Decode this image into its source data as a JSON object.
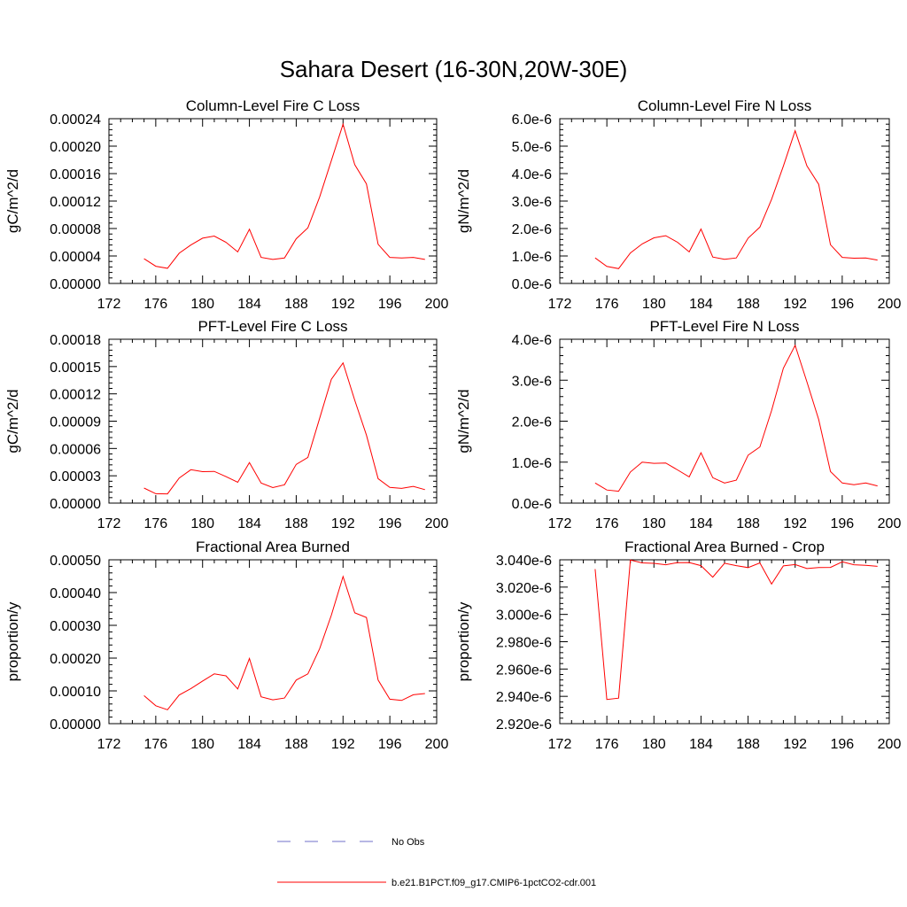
{
  "title": "Sahara Desert (16-30N,20W-30E)",
  "legend": {
    "placement": "bottom",
    "entries": [
      {
        "label": "No Obs",
        "color": "#6f6fc8",
        "style": "dashed"
      },
      {
        "label": "b.e21.B1PCT.f09_g17.CMIP6-1pctCO2-cdr.001",
        "color": "#ff0000",
        "style": "solid"
      }
    ]
  },
  "chart_data": [
    {
      "type": "line",
      "title": "Column-Level Fire C Loss",
      "ylabel": "gC/m^2/d",
      "xlim": [
        172,
        200
      ],
      "ylim": [
        0,
        0.00024
      ],
      "xticks": [
        172,
        176,
        180,
        184,
        188,
        192,
        196,
        200
      ],
      "xtick_labels": [
        "172",
        "176",
        "180",
        "184",
        "188",
        "192",
        "196",
        "200"
      ],
      "yticks": [
        0,
        4e-05,
        8e-05,
        0.00012,
        0.00016,
        0.0002,
        0.00024
      ],
      "ytick_labels": [
        "0.00000",
        "0.00004",
        "0.00008",
        "0.00012",
        "0.00016",
        "0.00020",
        "0.00024"
      ],
      "x": [
        175,
        176,
        177,
        178,
        179,
        180,
        181,
        182,
        183,
        184,
        185,
        186,
        187,
        188,
        189,
        190,
        191,
        192,
        193,
        194,
        195,
        196,
        197,
        198,
        199
      ],
      "series": [
        {
          "name": "b.e21.B1PCT.f09_g17.CMIP6-1pctCO2-cdr.001",
          "color": "#ff0000",
          "values": [
            3.6e-05,
            2.5e-05,
            2.2e-05,
            4.4e-05,
            5.6e-05,
            6.6e-05,
            6.9e-05,
            6e-05,
            4.6e-05,
            7.9e-05,
            3.8e-05,
            3.5e-05,
            3.7e-05,
            6.5e-05,
            8.1e-05,
            0.000126,
            0.000179,
            0.000232,
            0.000173,
            0.000145,
            5.7e-05,
            3.8e-05,
            3.7e-05,
            3.8e-05,
            3.5e-05
          ]
        }
      ]
    },
    {
      "type": "line",
      "title": "Column-Level Fire N Loss",
      "ylabel": "gN/m^2/d",
      "xlim": [
        172,
        200
      ],
      "ylim": [
        0,
        6e-06
      ],
      "xticks": [
        172,
        176,
        180,
        184,
        188,
        192,
        196,
        200
      ],
      "xtick_labels": [
        "172",
        "176",
        "180",
        "184",
        "188",
        "192",
        "196",
        "200"
      ],
      "yticks": [
        0,
        1e-06,
        2e-06,
        3e-06,
        4e-06,
        5e-06,
        6e-06
      ],
      "ytick_labels": [
        "0.0e-6",
        "1.0e-6",
        "2.0e-6",
        "3.0e-6",
        "4.0e-6",
        "5.0e-6",
        "6.0e-6"
      ],
      "x": [
        175,
        176,
        177,
        178,
        179,
        180,
        181,
        182,
        183,
        184,
        185,
        186,
        187,
        188,
        189,
        190,
        191,
        192,
        193,
        194,
        195,
        196,
        197,
        198,
        199
      ],
      "series": [
        {
          "name": "b.e21.B1PCT.f09_g17.CMIP6-1pctCO2-cdr.001",
          "color": "#ff0000",
          "values": [
            9.3e-07,
            6.2e-07,
            5.4e-07,
            1.11e-06,
            1.44e-06,
            1.66e-06,
            1.74e-06,
            1.5e-06,
            1.15e-06,
            1.98e-06,
            9.6e-07,
            8.8e-07,
            9.3e-07,
            1.65e-06,
            2.05e-06,
            3.06e-06,
            4.27e-06,
            5.56e-06,
            4.28e-06,
            3.61e-06,
            1.41e-06,
            9.5e-07,
            9.2e-07,
            9.3e-07,
            8.5e-07
          ]
        }
      ]
    },
    {
      "type": "line",
      "title": "PFT-Level Fire C Loss",
      "ylabel": "gC/m^2/d",
      "xlim": [
        172,
        200
      ],
      "ylim": [
        0,
        0.00018
      ],
      "xticks": [
        172,
        176,
        180,
        184,
        188,
        192,
        196,
        200
      ],
      "xtick_labels": [
        "172",
        "176",
        "180",
        "184",
        "188",
        "192",
        "196",
        "200"
      ],
      "yticks": [
        0,
        3e-05,
        6e-05,
        9e-05,
        0.00012,
        0.00015,
        0.00018
      ],
      "ytick_labels": [
        "0.00000",
        "0.00003",
        "0.00006",
        "0.00009",
        "0.00012",
        "0.00015",
        "0.00018"
      ],
      "x": [
        175,
        176,
        177,
        178,
        179,
        180,
        181,
        182,
        183,
        184,
        185,
        186,
        187,
        188,
        189,
        190,
        191,
        192,
        193,
        194,
        195,
        196,
        197,
        198,
        199
      ],
      "series": [
        {
          "name": "b.e21.B1PCT.f09_g17.CMIP6-1pctCO2-cdr.001",
          "color": "#ff0000",
          "values": [
            1.65e-05,
            1.03e-05,
            1.01e-05,
            2.75e-05,
            3.67e-05,
            3.45e-05,
            3.48e-05,
            2.91e-05,
            2.29e-05,
            4.46e-05,
            2.2e-05,
            1.7e-05,
            2.01e-05,
            4.25e-05,
            5.02e-05,
            9.32e-05,
            0.000136,
            0.000154,
            0.000113,
            7.47e-05,
            2.69e-05,
            1.72e-05,
            1.62e-05,
            1.84e-05,
            1.48e-05
          ]
        }
      ]
    },
    {
      "type": "line",
      "title": "PFT-Level Fire N Loss",
      "ylabel": "gN/m^2/d",
      "xlim": [
        172,
        200
      ],
      "ylim": [
        0,
        4e-06
      ],
      "xticks": [
        172,
        176,
        180,
        184,
        188,
        192,
        196,
        200
      ],
      "xtick_labels": [
        "172",
        "176",
        "180",
        "184",
        "188",
        "192",
        "196",
        "200"
      ],
      "yticks": [
        0,
        1e-06,
        2e-06,
        3e-06,
        4e-06
      ],
      "ytick_labels": [
        "0.0e-6",
        "1.0e-6",
        "2.0e-6",
        "3.0e-6",
        "4.0e-6"
      ],
      "x": [
        175,
        176,
        177,
        178,
        179,
        180,
        181,
        182,
        183,
        184,
        185,
        186,
        187,
        188,
        189,
        190,
        191,
        192,
        193,
        194,
        195,
        196,
        197,
        198,
        199
      ],
      "series": [
        {
          "name": "b.e21.B1PCT.f09_g17.CMIP6-1pctCO2-cdr.001",
          "color": "#ff0000",
          "values": [
            4.9e-07,
            3.2e-07,
            2.9e-07,
            7.6e-07,
            1e-06,
            9.7e-07,
            9.8e-07,
            8.1e-07,
            6.4e-07,
            1.23e-06,
            6.2e-07,
            4.9e-07,
            5.6e-07,
            1.17e-06,
            1.37e-06,
            2.26e-06,
            3.29e-06,
            3.85e-06,
            2.96e-06,
            2.04e-06,
            7.7e-07,
            4.9e-07,
            4.5e-07,
            4.9e-07,
            4.2e-07
          ]
        }
      ]
    },
    {
      "type": "line",
      "title": "Fractional Area Burned",
      "ylabel": "proportion/y",
      "xlim": [
        172,
        200
      ],
      "ylim": [
        0,
        0.0005
      ],
      "xticks": [
        172,
        176,
        180,
        184,
        188,
        192,
        196,
        200
      ],
      "xtick_labels": [
        "172",
        "176",
        "180",
        "184",
        "188",
        "192",
        "196",
        "200"
      ],
      "yticks": [
        0,
        0.0001,
        0.0002,
        0.0003,
        0.0004,
        0.0005
      ],
      "ytick_labels": [
        "0.00000",
        "0.00010",
        "0.00020",
        "0.00030",
        "0.00040",
        "0.00050"
      ],
      "x": [
        175,
        176,
        177,
        178,
        179,
        180,
        181,
        182,
        183,
        184,
        185,
        186,
        187,
        188,
        189,
        190,
        191,
        192,
        193,
        194,
        195,
        196,
        197,
        198,
        199
      ],
      "series": [
        {
          "name": "b.e21.B1PCT.f09_g17.CMIP6-1pctCO2-cdr.001",
          "color": "#ff0000",
          "values": [
            8.55e-05,
            5.45e-05,
            4.25e-05,
            8.73e-05,
            0.000107,
            0.00013,
            0.000152,
            0.000146,
            0.000106,
            0.000199,
            8.18e-05,
            7.27e-05,
            7.82e-05,
            0.000133,
            0.000152,
            0.000229,
            0.000331,
            0.000449,
            0.000338,
            0.000324,
            0.000133,
            7.45e-05,
            7.09e-05,
            8.82e-05,
            9.18e-05
          ]
        }
      ]
    },
    {
      "type": "line",
      "title": "Fractional Area Burned - Crop",
      "ylabel": "proportion/y",
      "xlim": [
        172,
        200
      ],
      "ylim": [
        2.92e-06,
        3.04e-06
      ],
      "xticks": [
        172,
        176,
        180,
        184,
        188,
        192,
        196,
        200
      ],
      "xtick_labels": [
        "172",
        "176",
        "180",
        "184",
        "188",
        "192",
        "196",
        "200"
      ],
      "yticks": [
        2.92e-06,
        2.94e-06,
        2.96e-06,
        2.98e-06,
        3e-06,
        3.02e-06,
        3.04e-06
      ],
      "ytick_labels": [
        "2.920e-6",
        "2.940e-6",
        "2.960e-6",
        "2.980e-6",
        "3.000e-6",
        "3.020e-6",
        "3.040e-6"
      ],
      "x": [
        175,
        176,
        177,
        178,
        179,
        180,
        181,
        182,
        183,
        184,
        185,
        186,
        187,
        188,
        189,
        190,
        191,
        192,
        193,
        194,
        195,
        196,
        197,
        198,
        199
      ],
      "series": [
        {
          "name": "b.e21.B1PCT.f09_g17.CMIP6-1pctCO2-cdr.001",
          "color": "#ff0000",
          "values": [
            3.0332e-06,
            2.9377e-06,
            2.9387e-06,
            3.0398e-06,
            3.0377e-06,
            3.0374e-06,
            3.0364e-06,
            3.0379e-06,
            3.038e-06,
            3.0357e-06,
            3.0273e-06,
            3.0375e-06,
            3.0357e-06,
            3.0343e-06,
            3.0377e-06,
            3.0222e-06,
            3.0355e-06,
            3.0365e-06,
            3.0336e-06,
            3.0343e-06,
            3.0344e-06,
            3.0385e-06,
            3.0364e-06,
            3.036e-06,
            3.0352e-06
          ]
        }
      ]
    }
  ]
}
